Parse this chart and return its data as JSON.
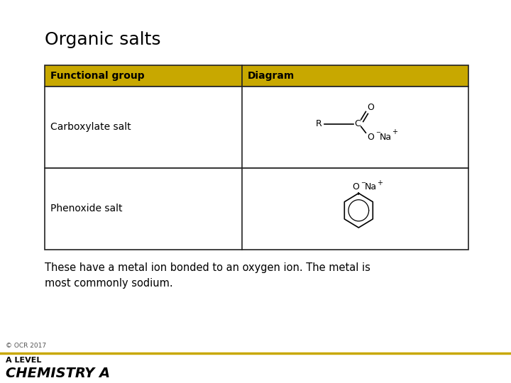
{
  "title": "Organic salts",
  "header_col1": "Functional group",
  "header_col2": "Diagram",
  "row1_col1": "Carboxylate salt",
  "row2_col1": "Phenoxide salt",
  "description": "These have a metal ion bonded to an oxygen ion. The metal is\nmost commonly sodium.",
  "copyright": "© OCR 2017",
  "footer_level": "A LEVEL",
  "footer_brand": "CHEMISTRY A",
  "header_bg": "#C8A800",
  "border_color": "#222222",
  "bg_color": "#FFFFFF",
  "gold_line_color": "#C8A800",
  "title_fontsize": 18,
  "body_fontsize": 10,
  "header_fontsize": 10
}
